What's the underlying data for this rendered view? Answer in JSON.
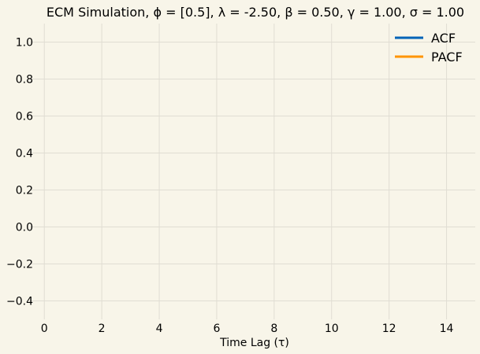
{
  "chart_data": {
    "type": "line",
    "title": "ECM Simulation, ϕ = [0.5], λ = -2.50, β = 0.50, γ = 1.00, σ = 1.00",
    "xlabel": "Time Lag (τ)",
    "ylabel": "",
    "xlim": [
      -0.5,
      15
    ],
    "ylim": [
      -0.5,
      1.1
    ],
    "x_ticks": [
      0,
      2,
      4,
      6,
      8,
      10,
      12,
      14
    ],
    "y_ticks": [
      -0.4,
      -0.2,
      0.0,
      0.2,
      0.4,
      0.6,
      0.8,
      1.0
    ],
    "x_tick_labels": [
      "0",
      "2",
      "4",
      "6",
      "8",
      "10",
      "12",
      "14"
    ],
    "y_tick_labels": [
      "−0.4",
      "−0.2",
      "0.0",
      "0.2",
      "0.4",
      "0.6",
      "0.8",
      "1.0"
    ],
    "grid": true,
    "legend_position": "top-right",
    "series": [
      {
        "name": "ACF",
        "color": "#0063b8",
        "x": [],
        "values": []
      },
      {
        "name": "PACF",
        "color": "#ff9400",
        "x": [],
        "values": []
      }
    ]
  },
  "colors": {
    "background": "#f8f5e9",
    "grid": "#e0ddd3"
  }
}
